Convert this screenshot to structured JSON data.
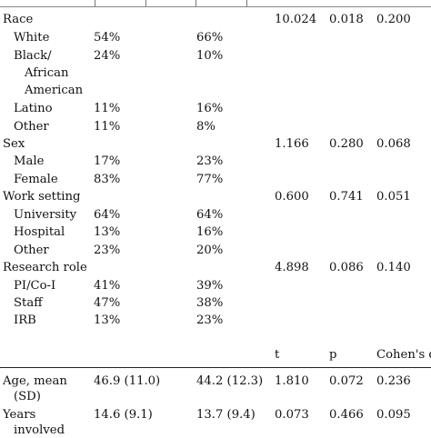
{
  "rows": [
    {
      "label": "Race",
      "g1": "",
      "g2": "",
      "stat": "10.024",
      "p": "0.018",
      "effect": "0.200"
    },
    {
      "label": "White",
      "g1": "54%",
      "g2": "66%"
    },
    {
      "label": "Black/",
      "g1": "24%",
      "g2": "10%"
    },
    {
      "label": "African"
    },
    {
      "label": "American"
    },
    {
      "label": "Latino",
      "g1": "11%",
      "g2": "16%"
    },
    {
      "label": "Other",
      "g1": "11%",
      "g2": "8%"
    },
    {
      "label": "Sex",
      "stat": "1.166",
      "p": "0.280",
      "effect": "0.068"
    },
    {
      "label": "Male",
      "g1": "17%",
      "g2": "23%"
    },
    {
      "label": "Female",
      "g1": "83%",
      "g2": "77%"
    },
    {
      "label": "Work setting",
      "stat": "0.600",
      "p": "0.741",
      "effect": "0.051"
    },
    {
      "label": "University",
      "g1": "64%",
      "g2": "64%"
    },
    {
      "label": "Hospital",
      "g1": "13%",
      "g2": "16%"
    },
    {
      "label": "Other",
      "g1": "23%",
      "g2": "20%"
    },
    {
      "label": "Research role",
      "stat": "4.898",
      "p": "0.086",
      "effect": "0.140"
    },
    {
      "label": "PI/Co-I",
      "g1": "41%",
      "g2": "39%"
    },
    {
      "label": "Staff",
      "g1": "47%",
      "g2": "38%"
    },
    {
      "label": "IRB",
      "g1": "13%",
      "g2": "23%"
    }
  ],
  "continuous_header": {
    "stat": "t",
    "p": "p",
    "effect": "Cohen's d"
  },
  "continuous_rows": [
    {
      "label": "Age, mean",
      "label2": "(SD)",
      "g1": "46.9 (11.0)",
      "g2": "44.2 (12.3)",
      "stat": "1.810",
      "p": "0.072",
      "effect": "0.236"
    },
    {
      "label": "Years",
      "label2": "involved",
      "g1": "14.6 (9.1)",
      "g2": "13.7 (9.4)",
      "stat": "0.073",
      "p": "0.466",
      "effect": "0.095"
    }
  ]
}
